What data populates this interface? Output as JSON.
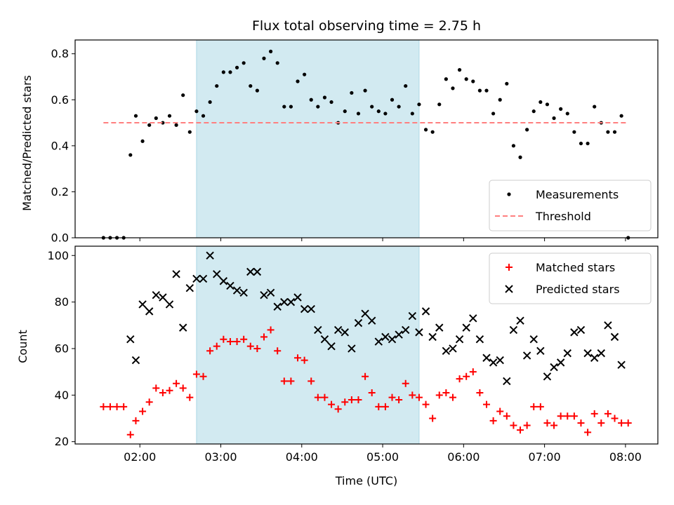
{
  "chart_data": [
    {
      "type": "scatter",
      "title": "Flux total observing time = 2.75 h",
      "xlabel": "",
      "ylabel": "Matched/Predicted stars",
      "ylim": [
        0,
        0.86
      ],
      "yticks": [
        "0.0",
        "0.2",
        "0.4",
        "0.6",
        "0.8"
      ],
      "xlim": [
        "01:12",
        "08:24"
      ],
      "highlight_span": {
        "start": "02:42",
        "end": "05:27",
        "color": "#add8e6"
      },
      "legend_position": "lower right",
      "series": [
        {
          "name": "Measurements",
          "style": "dot",
          "color": "#000000",
          "x": [
            "01:33",
            "01:38",
            "01:43",
            "01:48",
            "01:53",
            "01:57",
            "02:02",
            "02:07",
            "02:12",
            "02:17",
            "02:22",
            "02:27",
            "02:32",
            "02:37",
            "02:42",
            "02:47",
            "02:52",
            "02:57",
            "03:02",
            "03:07",
            "03:12",
            "03:17",
            "03:22",
            "03:27",
            "03:32",
            "03:37",
            "03:42",
            "03:47",
            "03:52",
            "03:57",
            "04:02",
            "04:07",
            "04:12",
            "04:17",
            "04:22",
            "04:27",
            "04:32",
            "04:37",
            "04:42",
            "04:47",
            "04:52",
            "04:57",
            "05:02",
            "05:07",
            "05:12",
            "05:17",
            "05:22",
            "05:27",
            "05:32",
            "05:37",
            "05:42",
            "05:47",
            "05:52",
            "05:57",
            "06:02",
            "06:07",
            "06:12",
            "06:17",
            "06:22",
            "06:27",
            "06:32",
            "06:37",
            "06:42",
            "06:47",
            "06:52",
            "06:57",
            "07:02",
            "07:07",
            "07:12",
            "07:17",
            "07:22",
            "07:27",
            "07:32",
            "07:37",
            "07:42",
            "07:47",
            "07:52",
            "07:57",
            "08:02"
          ],
          "y": [
            0.0,
            0.0,
            0.0,
            0.0,
            0.36,
            0.53,
            0.42,
            0.49,
            0.52,
            0.5,
            0.53,
            0.49,
            0.62,
            0.46,
            0.55,
            0.53,
            0.59,
            0.66,
            0.72,
            0.72,
            0.74,
            0.76,
            0.66,
            0.64,
            0.78,
            0.81,
            0.76,
            0.57,
            0.57,
            0.68,
            0.71,
            0.6,
            0.57,
            0.61,
            0.59,
            0.5,
            0.55,
            0.63,
            0.54,
            0.64,
            0.57,
            0.55,
            0.54,
            0.6,
            0.57,
            0.66,
            0.54,
            0.58,
            0.47,
            0.46,
            0.58,
            0.69,
            0.65,
            0.73,
            0.69,
            0.68,
            0.64,
            0.64,
            0.54,
            0.6,
            0.67,
            0.4,
            0.35,
            0.47,
            0.55,
            0.59,
            0.58,
            0.52,
            0.56,
            0.54,
            0.46,
            0.41,
            0.41,
            0.57,
            0.5,
            0.46,
            0.46,
            0.53,
            0.0
          ]
        },
        {
          "name": "Threshold",
          "style": "dashed-line",
          "color": "#ff7f7f",
          "x": [
            "01:33",
            "08:02"
          ],
          "y": [
            0.5,
            0.5
          ]
        }
      ]
    },
    {
      "type": "scatter",
      "title": "",
      "xlabel": "Time (UTC)",
      "ylabel": "Count",
      "ylim": [
        19,
        104
      ],
      "yticks": [
        "20",
        "40",
        "60",
        "80",
        "100"
      ],
      "xlim": [
        "01:12",
        "08:24"
      ],
      "xticks": [
        "02:00",
        "03:00",
        "04:00",
        "05:00",
        "06:00",
        "07:00",
        "08:00"
      ],
      "highlight_span": {
        "start": "02:42",
        "end": "05:27",
        "color": "#add8e6"
      },
      "legend_position": "upper right",
      "series": [
        {
          "name": "Matched stars",
          "style": "plus",
          "color": "#ff0000",
          "x": [
            "01:33",
            "01:38",
            "01:43",
            "01:48",
            "01:53",
            "01:57",
            "02:02",
            "02:07",
            "02:12",
            "02:17",
            "02:22",
            "02:27",
            "02:32",
            "02:37",
            "02:42",
            "02:47",
            "02:52",
            "02:57",
            "03:02",
            "03:07",
            "03:12",
            "03:17",
            "03:22",
            "03:27",
            "03:32",
            "03:37",
            "03:42",
            "03:47",
            "03:52",
            "03:57",
            "04:02",
            "04:07",
            "04:12",
            "04:17",
            "04:22",
            "04:27",
            "04:32",
            "04:37",
            "04:42",
            "04:47",
            "04:52",
            "04:57",
            "05:02",
            "05:07",
            "05:12",
            "05:17",
            "05:22",
            "05:27",
            "05:32",
            "05:37",
            "05:42",
            "05:47",
            "05:52",
            "05:57",
            "06:02",
            "06:07",
            "06:12",
            "06:17",
            "06:22",
            "06:27",
            "06:32",
            "06:37",
            "06:42",
            "06:47",
            "06:52",
            "06:57",
            "07:02",
            "07:07",
            "07:12",
            "07:17",
            "07:22",
            "07:27",
            "07:32",
            "07:37",
            "07:42",
            "07:47",
            "07:52",
            "07:57",
            "08:02"
          ],
          "y": [
            35,
            35,
            35,
            35,
            23,
            29,
            33,
            37,
            43,
            41,
            42,
            45,
            43,
            39,
            49,
            48,
            59,
            61,
            64,
            63,
            63,
            64,
            61,
            60,
            65,
            68,
            59,
            46,
            46,
            56,
            55,
            46,
            39,
            39,
            36,
            34,
            37,
            38,
            38,
            48,
            41,
            35,
            35,
            39,
            38,
            45,
            40,
            39,
            36,
            30,
            40,
            41,
            39,
            47,
            48,
            50,
            41,
            36,
            29,
            33,
            31,
            27,
            25,
            27,
            35,
            35,
            28,
            27,
            31,
            31,
            31,
            28,
            24,
            32,
            28,
            32,
            30,
            28,
            28
          ]
        },
        {
          "name": "Predicted stars",
          "style": "x",
          "color": "#000000",
          "x": [
            "01:53",
            "01:57",
            "02:02",
            "02:07",
            "02:12",
            "02:17",
            "02:22",
            "02:27",
            "02:32",
            "02:37",
            "02:42",
            "02:47",
            "02:52",
            "02:57",
            "03:02",
            "03:07",
            "03:12",
            "03:17",
            "03:22",
            "03:27",
            "03:32",
            "03:37",
            "03:42",
            "03:47",
            "03:52",
            "03:57",
            "04:02",
            "04:07",
            "04:12",
            "04:17",
            "04:22",
            "04:27",
            "04:32",
            "04:37",
            "04:42",
            "04:47",
            "04:52",
            "04:57",
            "05:02",
            "05:07",
            "05:12",
            "05:17",
            "05:22",
            "05:27",
            "05:32",
            "05:37",
            "05:42",
            "05:47",
            "05:52",
            "05:57",
            "06:02",
            "06:07",
            "06:12",
            "06:17",
            "06:22",
            "06:27",
            "06:32",
            "06:37",
            "06:42",
            "06:47",
            "06:52",
            "06:57",
            "07:02",
            "07:07",
            "07:12",
            "07:17",
            "07:22",
            "07:27",
            "07:32",
            "07:37",
            "07:42",
            "07:47",
            "07:52",
            "07:57"
          ],
          "y": [
            64,
            55,
            79,
            76,
            83,
            82,
            79,
            92,
            69,
            86,
            90,
            90,
            100,
            92,
            89,
            87,
            85,
            84,
            93,
            93,
            83,
            84,
            78,
            80,
            80,
            82,
            77,
            77,
            68,
            64,
            61,
            68,
            67,
            60,
            71,
            75,
            72,
            63,
            65,
            64,
            66,
            68,
            74,
            67,
            76,
            65,
            69,
            59,
            60,
            64,
            69,
            73,
            64,
            56,
            54,
            55,
            46,
            68,
            72,
            57,
            64,
            59,
            48,
            52,
            54,
            58,
            67,
            68,
            58,
            56,
            58,
            70,
            65,
            53
          ]
        }
      ]
    }
  ]
}
